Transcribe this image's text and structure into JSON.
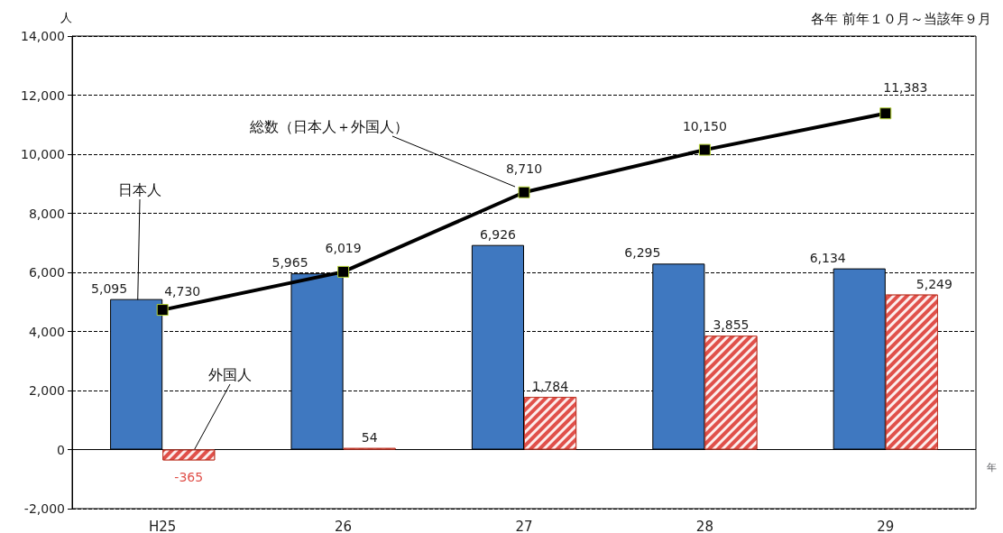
{
  "chart_data": {
    "type": "bar",
    "subtitle": "各年 前年１０月～当該年９月",
    "ylabel": "人",
    "xlabel": "年",
    "categories": [
      "H25",
      "26",
      "27",
      "28",
      "29"
    ],
    "series": [
      {
        "name": "日本人",
        "color": "#3f78c0",
        "values": [
          5095,
          5965,
          6926,
          6295,
          6134
        ],
        "value_labels": [
          "5,095",
          "5,965",
          "6,926",
          "6,295",
          "6,134"
        ]
      },
      {
        "name": "外国人",
        "color": "#e0504a",
        "values": [
          -365,
          54,
          1784,
          3855,
          5249
        ],
        "value_labels": [
          "-365",
          "54",
          "1,784",
          "3,855",
          "5,249"
        ]
      },
      {
        "name": "総数（日本人＋外国人）",
        "type": "line",
        "color": "#000000",
        "values": [
          4730,
          6019,
          8710,
          10150,
          11383
        ],
        "value_labels": [
          "4,730",
          "6,019",
          "8,710",
          "10,150",
          "11,383"
        ]
      }
    ],
    "ylim": [
      -2000,
      14000
    ],
    "yticks": [
      {
        "value": -2000,
        "label": "-2,000"
      },
      0,
      {
        "value": 2000,
        "label": "2,000"
      },
      {
        "value": 4000,
        "label": "4,000"
      },
      {
        "value": 6000,
        "label": "6,000"
      },
      {
        "value": 8000,
        "label": "8,000"
      },
      {
        "value": 10000,
        "label": "10,000"
      },
      {
        "value": 12000,
        "label": "12,000"
      },
      {
        "value": 14000,
        "label": "14,000"
      }
    ],
    "grid": "y",
    "legend": false,
    "marker": "square",
    "line_style": "solid"
  }
}
